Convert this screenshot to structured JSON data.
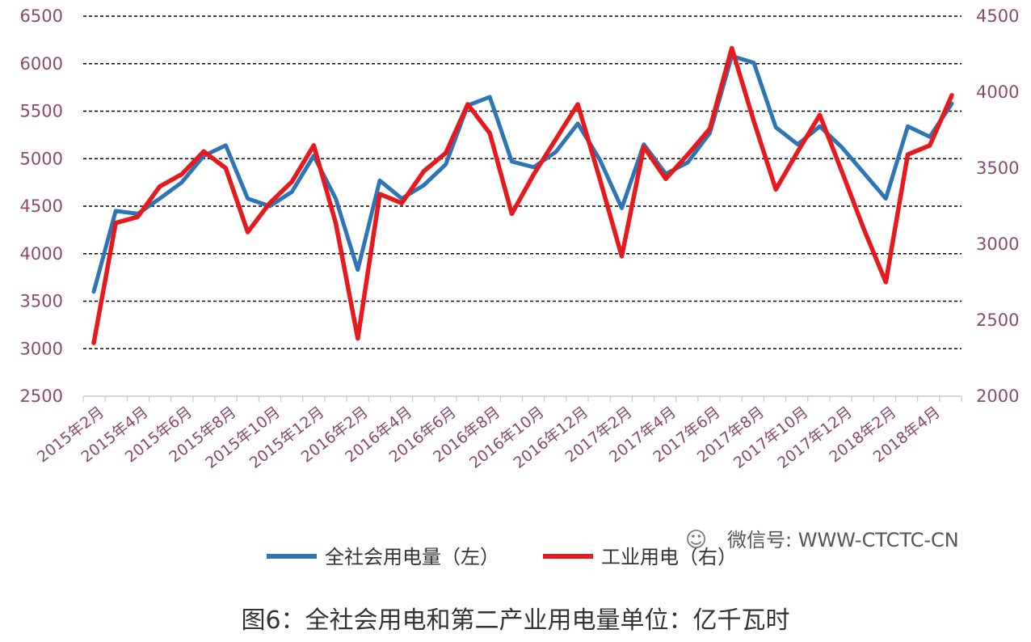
{
  "chart_data": {
    "type": "line",
    "title": "",
    "categories": [
      "2015年2月",
      "2015年3月",
      "2015年4月",
      "2015年5月",
      "2015年6月",
      "2015年7月",
      "2015年8月",
      "2015年9月",
      "2015年10月",
      "2015年11月",
      "2015年12月",
      "2016年1月",
      "2016年2月",
      "2016年3月",
      "2016年4月",
      "2016年5月",
      "2016年6月",
      "2016年7月",
      "2016年8月",
      "2016年9月",
      "2016年10月",
      "2016年11月",
      "2016年12月",
      "2017年1月",
      "2017年2月",
      "2017年3月",
      "2017年4月",
      "2017年5月",
      "2017年6月",
      "2017年7月",
      "2017年8月",
      "2017年9月",
      "2017年10月",
      "2017年11月",
      "2017年12月",
      "2018年1月",
      "2018年2月",
      "2018年3月",
      "2018年4月",
      "2018年5月"
    ],
    "x_tick_labels": [
      "2015年2月",
      "2015年4月",
      "2015年6月",
      "2015年8月",
      "2015年10月",
      "2015年12月",
      "2016年2月",
      "2016年4月",
      "2016年6月",
      "2016年8月",
      "2016年10月",
      "2016年12月",
      "2017年2月",
      "2017年4月",
      "2017年6月",
      "2017年8月",
      "2017年10月",
      "2017年12月",
      "2018年2月",
      "2018年4月"
    ],
    "y_left": {
      "ticks": [
        2500,
        3000,
        3500,
        4000,
        4500,
        5000,
        5500,
        6000,
        6500
      ],
      "ylim": [
        2500,
        6500
      ]
    },
    "y_right": {
      "ticks": [
        2000,
        2500,
        3000,
        3500,
        4000,
        4500
      ],
      "ylim": [
        2000,
        4500
      ]
    },
    "grid": "horizontal-dashed",
    "legend_position": "bottom",
    "series": [
      {
        "name": "全社会用电量（左）",
        "axis": "left",
        "color": "#2e75b6",
        "values": [
          3600,
          4450,
          4420,
          4580,
          4750,
          5030,
          5140,
          4580,
          4500,
          4650,
          5030,
          4580,
          3830,
          4770,
          4580,
          4720,
          4940,
          5560,
          5650,
          4970,
          4910,
          5070,
          5370,
          4990,
          4480,
          5150,
          4840,
          4960,
          5270,
          6080,
          6010,
          5330,
          5150,
          5340,
          5120,
          4850,
          4580,
          5340,
          5230,
          5580
        ]
      },
      {
        "name": "工业用电（右）",
        "axis": "right",
        "color": "#e8191d",
        "values": [
          2350,
          3140,
          3180,
          3380,
          3460,
          3610,
          3500,
          3080,
          3270,
          3410,
          3650,
          3140,
          2380,
          3330,
          3270,
          3480,
          3600,
          3920,
          3730,
          3200,
          3460,
          3690,
          3920,
          3430,
          2920,
          3640,
          3430,
          3590,
          3760,
          4290,
          3810,
          3360,
          3610,
          3850,
          3480,
          3100,
          2750,
          3590,
          3650,
          3980
        ]
      }
    ]
  },
  "legend": [
    {
      "label": "全社会用电量（左）",
      "color": "#2e75b6"
    },
    {
      "label": "工业用电（右）",
      "color": "#e8191d"
    }
  ],
  "watermark": "微信号: WWW-CTCTC-CN",
  "caption": "图6：全社会用电和第二产业用电量单位：亿千瓦时"
}
